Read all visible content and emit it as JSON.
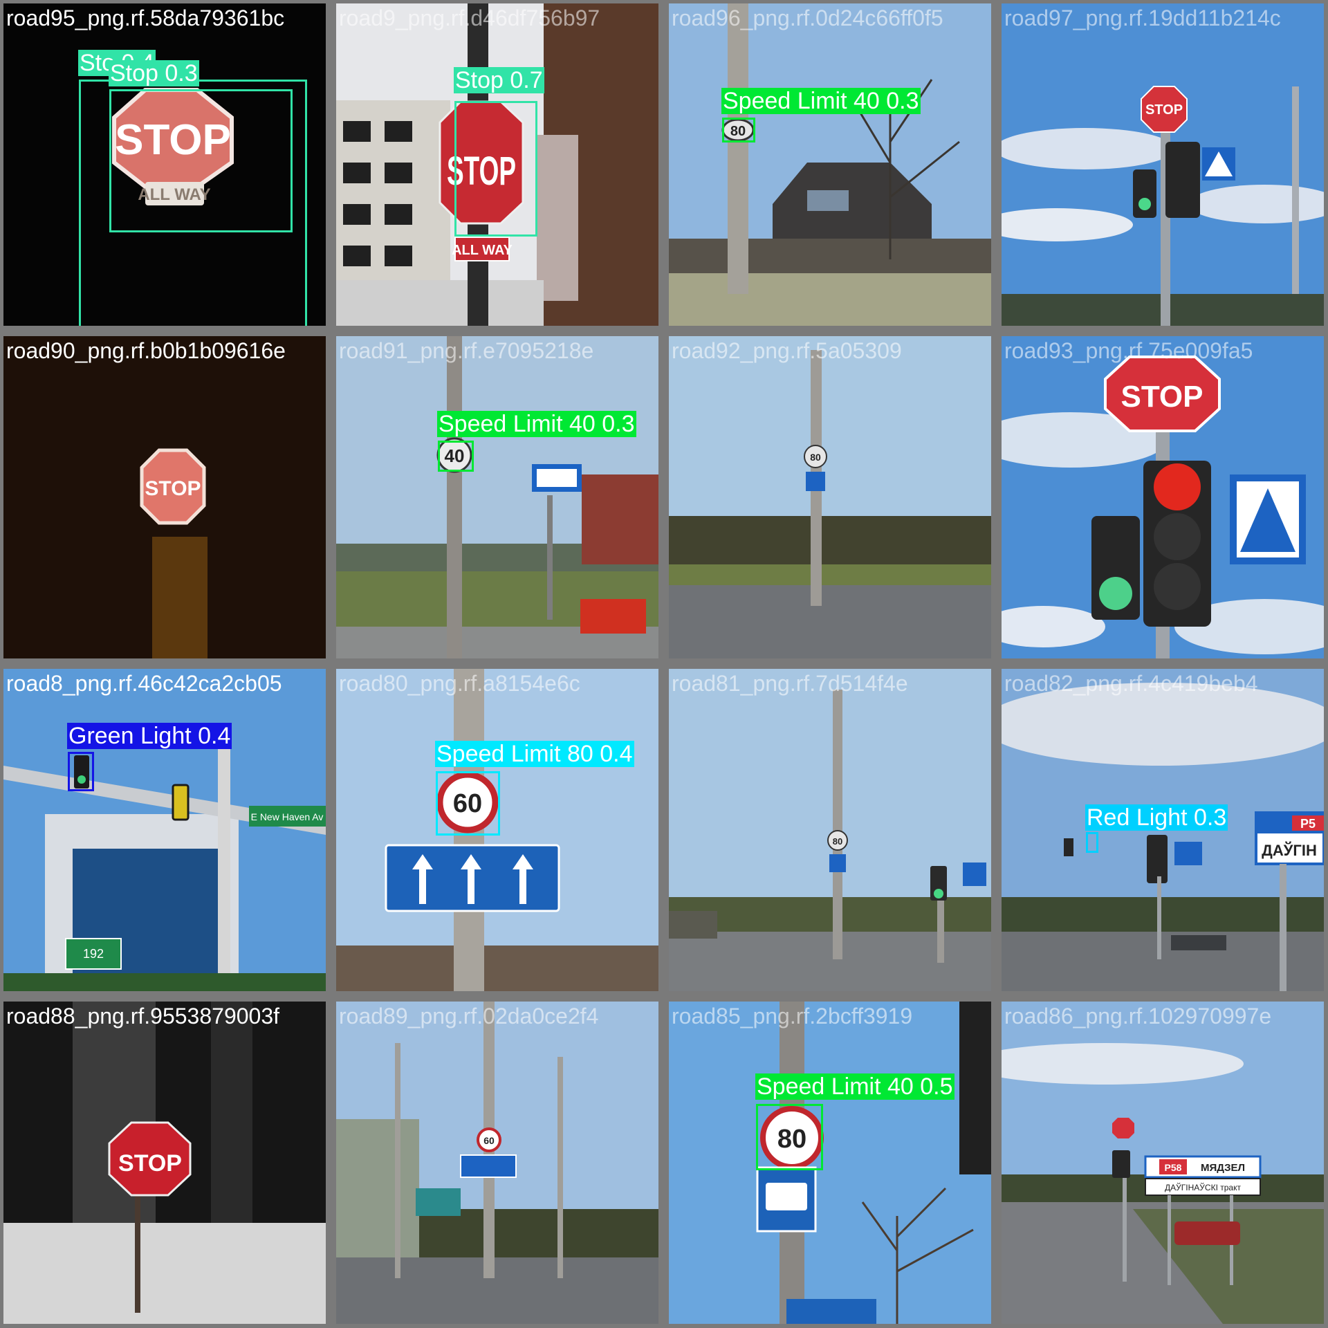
{
  "colors": {
    "stop": "#31e3a7",
    "speed_limit_40": "#00e833",
    "speed_limit_80": "#00e9ff",
    "green_light": "#1414e6",
    "red_light": "#00d0ff"
  },
  "tiles": [
    {
      "filename": "road95_png.rf.58da79361bc",
      "detections": [
        {
          "label": "Sto 0.4"
        },
        {
          "label": "Stop 0.3"
        }
      ]
    },
    {
      "filename": "road9_png.rf.d46df756b97",
      "detections": [
        {
          "label": "Stop 0.7"
        }
      ]
    },
    {
      "filename": "road96_png.rf.0d24c66ff0f5",
      "detections": [
        {
          "label": "Speed Limit 40 0.3"
        }
      ]
    },
    {
      "filename": "road97_png.rf.19dd11b214c",
      "detections": []
    },
    {
      "filename": "road90_png.rf.b0b1b09616e",
      "detections": []
    },
    {
      "filename": "road91_png.rf.e7095218e",
      "detections": [
        {
          "label": "Speed Limit 40 0.3"
        }
      ]
    },
    {
      "filename": "road92_png.rf.5a05309",
      "detections": []
    },
    {
      "filename": "road93_png.rf.75e009fa5",
      "detections": []
    },
    {
      "filename": "road8_png.rf.46c42ca2cb05",
      "detections": [
        {
          "label": "Green Light 0.4"
        }
      ]
    },
    {
      "filename": "road80_png.rf.a8154e6c",
      "detections": [
        {
          "label": "Speed Limit 80 0.4"
        }
      ]
    },
    {
      "filename": "road81_png.rf.7d514f4e",
      "detections": []
    },
    {
      "filename": "road82_png.rf.4c419beb4",
      "detections": [
        {
          "label": "Red Light 0.3"
        }
      ]
    },
    {
      "filename": "road88_png.rf.9553879003f",
      "detections": []
    },
    {
      "filename": "road89_png.rf.02da0ce2f4",
      "detections": []
    },
    {
      "filename": "road85_png.rf.2bcff3919",
      "detections": [
        {
          "label": "Speed Limit 40 0.5"
        }
      ]
    },
    {
      "filename": "road86_png.rf.102970997e",
      "detections": []
    }
  ],
  "scene_text": {
    "stop": "STOP",
    "all_way": "ALL WAY",
    "sign_80": "80",
    "sign_40": "40",
    "sign_60": "60",
    "sign_192": "192",
    "street_sign": "E New Haven Av",
    "cyr_daugin": "ДАЎГІН",
    "cyr_myadzel": "МЯДЗЕЛ",
    "cyr_daugin_trakt": "ДАЎГІНАЎСКІ тракт",
    "route_p5": "P5",
    "route_p58": "P58"
  }
}
